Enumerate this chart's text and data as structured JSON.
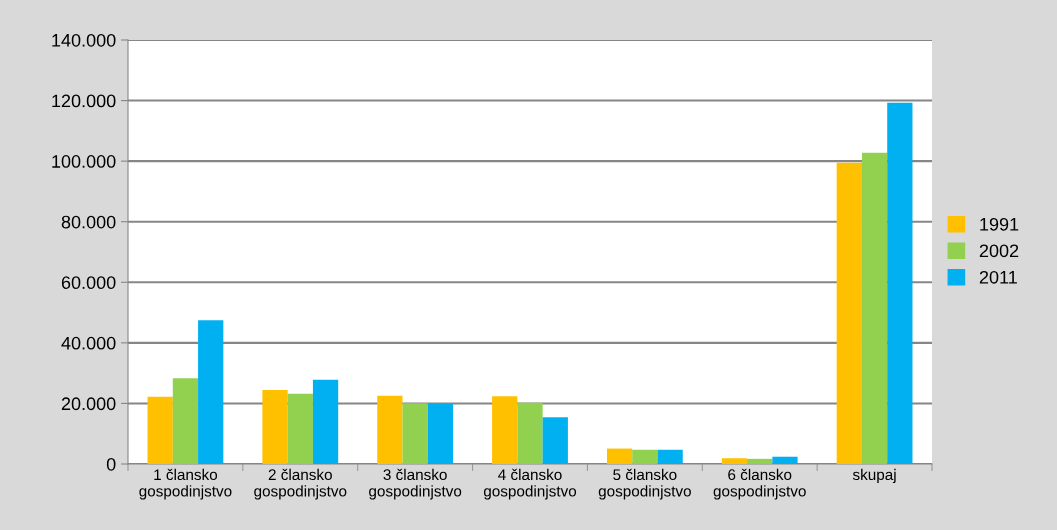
{
  "chart_data": {
    "type": "bar",
    "categories": [
      "1 člansko\ngospodinjstvo",
      "2 člansko\ngospodinjstvo",
      "3 člansko\ngospodinjstvo",
      "4 člansko\ngospodinjstvo",
      "5 člansko\ngospodinjstvo",
      "6 člansko\ngospodinjstvo",
      "skupaj"
    ],
    "series": [
      {
        "name": "1991",
        "color": "#ffc000",
        "values": [
          22200,
          24400,
          22500,
          22400,
          5100,
          1900,
          99500
        ]
      },
      {
        "name": "2002",
        "color": "#92d050",
        "values": [
          28300,
          23200,
          20100,
          20200,
          4700,
          1700,
          102800
        ]
      },
      {
        "name": "2011",
        "color": "#00b0f0",
        "values": [
          47500,
          27800,
          19900,
          15400,
          4700,
          2400,
          119300
        ]
      }
    ],
    "ylim": [
      0,
      140000
    ],
    "yticks": [
      {
        "value": 0,
        "label": "0"
      },
      {
        "value": 20000,
        "label": "20.000"
      },
      {
        "value": 40000,
        "label": "40.000"
      },
      {
        "value": 60000,
        "label": "60.000"
      },
      {
        "value": 80000,
        "label": "80.000"
      },
      {
        "value": 100000,
        "label": "100.000"
      },
      {
        "value": 120000,
        "label": "120.000"
      },
      {
        "value": 140000,
        "label": "140.000"
      }
    ],
    "grid": "y",
    "legend": "right"
  }
}
